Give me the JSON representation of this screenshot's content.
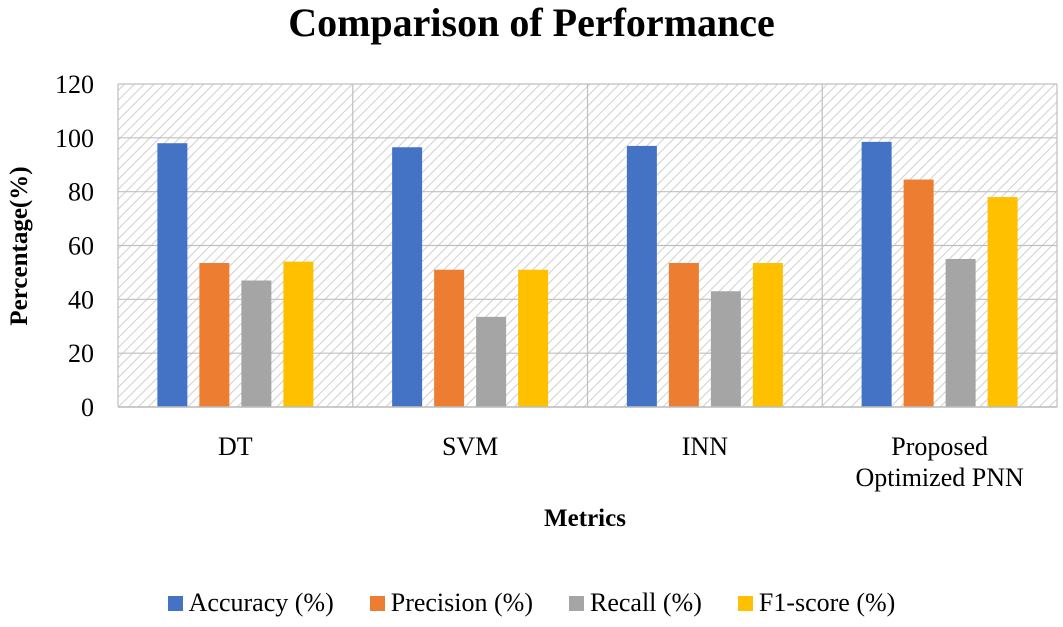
{
  "chart_data": {
    "type": "bar",
    "title": "Comparison of Performance",
    "xlabel": "Metrics",
    "ylabel": "Percentage(%)",
    "categories": [
      [
        "DT"
      ],
      [
        "SVM"
      ],
      [
        "INN"
      ],
      [
        "Proposed",
        "Optimized PNN"
      ]
    ],
    "ylim": [
      0,
      120
    ],
    "yticks": [
      "0",
      "20",
      "40",
      "60",
      "80",
      "100",
      "120"
    ],
    "grid": true,
    "legend_position": "bottom",
    "series": [
      {
        "name": "Accuracy (%)",
        "color": "#4472C4",
        "values": [
          98,
          96.5,
          97,
          98.5
        ]
      },
      {
        "name": "Precision (%)",
        "color": "#ED7D31",
        "values": [
          53.5,
          51,
          53.5,
          84.5
        ]
      },
      {
        "name": "Recall (%)",
        "color": "#A5A5A5",
        "values": [
          47,
          33.5,
          43,
          55
        ]
      },
      {
        "name": "F1-score (%)",
        "color": "#FFC000",
        "values": [
          54,
          51,
          53.5,
          78
        ]
      }
    ]
  }
}
